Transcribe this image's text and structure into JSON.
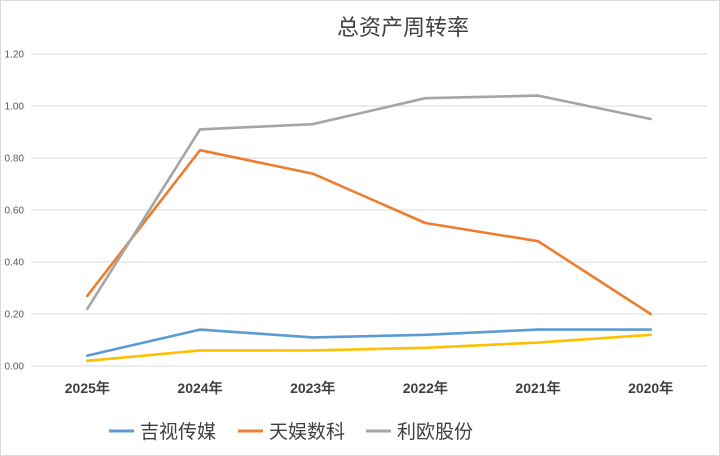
{
  "chart_data": {
    "type": "line",
    "title": "总资产周转率",
    "categories": [
      "2025年",
      "2024年",
      "2023年",
      "2022年",
      "2021年",
      "2020年"
    ],
    "ylim": [
      0,
      1.2
    ],
    "y_ticks": [
      "0.00",
      "0.20",
      "0.40",
      "0.60",
      "0.80",
      "1.00",
      "1.20"
    ],
    "grid": true,
    "legend": "bottom",
    "series": [
      {
        "name": "吉视传媒",
        "color": "#5B9BD5",
        "values": [
          0.04,
          0.14,
          0.11,
          0.12,
          0.14,
          0.14
        ]
      },
      {
        "name": "天娱数科",
        "color": "#ED7D31",
        "values": [
          0.27,
          0.83,
          0.74,
          0.55,
          0.48,
          0.2
        ]
      },
      {
        "name": "利欧股份",
        "color": "#A5A5A5",
        "values": [
          0.22,
          0.91,
          0.93,
          1.03,
          1.04,
          0.95
        ]
      },
      {
        "color": "#FFC000",
        "values": [
          0.02,
          0.06,
          0.06,
          0.07,
          0.09,
          0.12
        ]
      }
    ]
  }
}
